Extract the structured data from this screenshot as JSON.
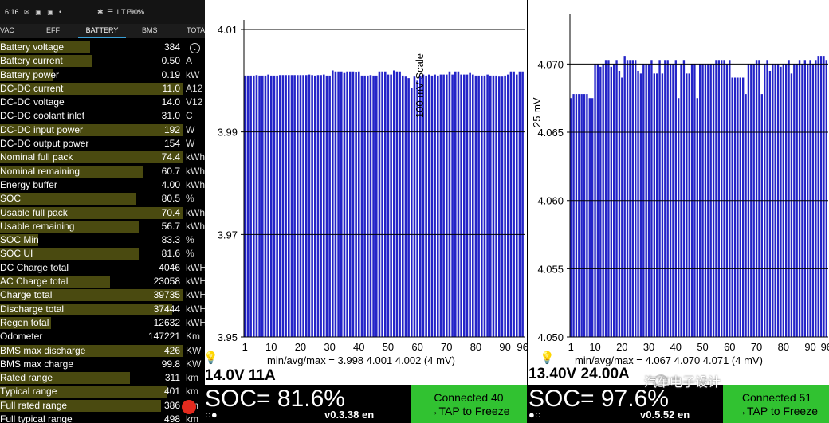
{
  "status_bar": {
    "time": "6:16",
    "icons": "✉ ▣ ▣ •",
    "signal": "✱ ☰ LTE",
    "battery": "90%"
  },
  "tabs": [
    "VAC",
    "EFF",
    "BATTERY",
    "BMS",
    "TOTA"
  ],
  "active_tab": "BATTERY",
  "rows": [
    {
      "label": "Battery voltage",
      "value": "384",
      "unit": "",
      "fill": 0.49
    },
    {
      "label": "Battery current",
      "value": "0.50",
      "unit": "A",
      "fill": 0.5
    },
    {
      "label": "Battery power",
      "value": "0.19",
      "unit": "kW",
      "fill": 0.29
    },
    {
      "label": "DC-DC current",
      "value": "11.0",
      "unit": "A12",
      "fill": 1.0
    },
    {
      "label": "DC-DC voltage",
      "value": "14.0",
      "unit": "V12",
      "fill": 0.0
    },
    {
      "label": "DC-DC coolant inlet",
      "value": "31.0",
      "unit": "C",
      "fill": 0.0
    },
    {
      "label": "DC-DC input power",
      "value": "192",
      "unit": "W",
      "fill": 1.0
    },
    {
      "label": "DC-DC output power",
      "value": "154",
      "unit": "W",
      "fill": 0.0
    },
    {
      "label": "Nominal full pack",
      "value": "74.4",
      "unit": "kWh",
      "fill": 1.0
    },
    {
      "label": "Nominal remaining",
      "value": "60.7",
      "unit": "kWh",
      "fill": 0.78
    },
    {
      "label": "Energy buffer",
      "value": "4.00",
      "unit": "kWh",
      "fill": 0.0
    },
    {
      "label": "SOC",
      "value": "80.5",
      "unit": "%",
      "fill": 0.74
    },
    {
      "label": "Usable full pack",
      "value": "70.4",
      "unit": "kWh",
      "fill": 1.0
    },
    {
      "label": "Usable remaining",
      "value": "56.7",
      "unit": "kWh",
      "fill": 0.76
    },
    {
      "label": "SOC Min",
      "value": "83.3",
      "unit": "%",
      "fill": 0.21
    },
    {
      "label": "SOC UI",
      "value": "81.6",
      "unit": "%",
      "fill": 0.76
    },
    {
      "label": "DC Charge total",
      "value": "4046",
      "unit": "kWH",
      "fill": 0.0
    },
    {
      "label": "AC Charge total",
      "value": "23058",
      "unit": "kWH",
      "fill": 0.6
    },
    {
      "label": "Charge total",
      "value": "39735",
      "unit": "kWH",
      "fill": 1.0
    },
    {
      "label": "Discharge total",
      "value": "37444",
      "unit": "kWH",
      "fill": 0.94
    },
    {
      "label": "Regen total",
      "value": "12632",
      "unit": "kWH",
      "fill": 0.28
    },
    {
      "label": "Odometer",
      "value": "147221",
      "unit": "Km",
      "fill": 0.0
    },
    {
      "label": "BMS max discharge",
      "value": "426",
      "unit": "KW",
      "fill": 1.0
    },
    {
      "label": "BMS max charge",
      "value": "99.8",
      "unit": "KW",
      "fill": 0.0
    },
    {
      "label": "Rated range",
      "value": "311",
      "unit": "km",
      "fill": 0.71
    },
    {
      "label": "Typical range",
      "value": "401",
      "unit": "km",
      "fill": 0.91
    },
    {
      "label": "Full rated range",
      "value": "386",
      "unit": "km",
      "fill": 0.88
    },
    {
      "label": "Full typical range",
      "value": "498",
      "unit": "km",
      "fill": 0.0
    }
  ],
  "panel1": {
    "ylabel": "100 mV Scale",
    "yticks": [
      "4.01",
      "3.99",
      "3.97",
      "3.95"
    ],
    "xticks": [
      "1",
      "10",
      "20",
      "30",
      "40",
      "50",
      "60",
      "70",
      "80",
      "90",
      "96"
    ],
    "minavgmax": "min/avg/max = 3.998 4.001 4.002  (4 mV)",
    "vi": "14.0V 11A",
    "soc": "SOC= 81.6%",
    "version": "v0.3.38 en",
    "dots": "○●",
    "conn_line1": "Connected 40",
    "conn_line2": "→TAP to Freeze",
    "bulb": "💡"
  },
  "panel2": {
    "ylabel": "25 mV",
    "yticks": [
      "4.070",
      "4.065",
      "4.060",
      "4.055",
      "4.050"
    ],
    "xticks": [
      "1",
      "10",
      "20",
      "30",
      "40",
      "50",
      "60",
      "70",
      "80",
      "90",
      "96"
    ],
    "minavgmax": "min/avg/max = 4.067 4.070 4.071  (4 mV)",
    "vi": "13.40V 24.00A",
    "soc": "SOC= 97.6%",
    "version": "v0.5.52 en",
    "dots": "●○",
    "conn_line1": "Connected 51",
    "conn_line2": "→TAP to Freeze",
    "bulb": "💡"
  },
  "watermark": "汽车电子设计",
  "chart_data": [
    {
      "type": "bar",
      "ylabel": "100 mV Scale",
      "ylim": [
        3.95,
        4.01
      ],
      "x": "cells 1-96",
      "values": [
        4.001,
        4.001,
        4.001,
        4.001,
        4.0011,
        4.001,
        4.001,
        4.001,
        4.0012,
        4.001,
        4.001,
        4.001,
        4.0011,
        4.0011,
        4.0011,
        4.0011,
        4.0011,
        4.0011,
        4.0011,
        4.0011,
        4.0011,
        4.0011,
        4.0012,
        4.0011,
        4.001,
        4.0011,
        4.0011,
        4.0012,
        4.001,
        4.001,
        4.002,
        4.0018,
        4.0018,
        4.0018,
        4.0015,
        4.0018,
        4.0018,
        4.0018,
        4.0016,
        4.0018,
        4.001,
        4.001,
        4.001,
        4.0011,
        4.001,
        4.001,
        4.0018,
        4.0018,
        4.0018,
        4.0012,
        4.0012,
        4.002,
        4.0018,
        4.0018,
        4.001,
        4.0008,
        4.0005,
        3.9985,
        4.0008,
        4.0,
        4.001,
        4.0012,
        4.001,
        4.0012,
        4.001,
        4.0012,
        4.001,
        4.0012,
        4.0012,
        4.0012,
        4.0018,
        4.0012,
        4.0018,
        4.0018,
        4.0012,
        4.0012,
        4.0012,
        4.0015,
        4.0012,
        4.001,
        4.001,
        4.001,
        4.001,
        4.0012,
        4.001,
        4.001,
        4.001,
        4.0008,
        4.0008,
        4.001,
        4.0012,
        4.0018,
        4.0018,
        4.0012,
        4.0018,
        4.0018
      ]
    },
    {
      "type": "bar",
      "ylabel": "25 mV",
      "ylim": [
        4.05,
        4.073
      ],
      "x": "cells 1-96",
      "values": [
        4.0675,
        4.0678,
        4.0678,
        4.0678,
        4.0678,
        4.0678,
        4.0678,
        4.0675,
        4.0675,
        4.07,
        4.07,
        4.0698,
        4.07,
        4.0703,
        4.0703,
        4.0698,
        4.07,
        4.0703,
        4.0695,
        4.069,
        4.0706,
        4.0703,
        4.0703,
        4.0703,
        4.0703,
        4.0695,
        4.0693,
        4.07,
        4.07,
        4.07,
        4.0703,
        4.0693,
        4.0693,
        4.0703,
        4.0693,
        4.0703,
        4.0703,
        4.07,
        4.07,
        4.0703,
        4.0675,
        4.07,
        4.0703,
        4.0693,
        4.0693,
        4.07,
        4.07,
        4.0675,
        4.07,
        4.07,
        4.07,
        4.07,
        4.07,
        4.07,
        4.0703,
        4.0703,
        4.0703,
        4.0703,
        4.07,
        4.0703,
        4.069,
        4.069,
        4.069,
        4.069,
        4.069,
        4.0678,
        4.07,
        4.07,
        4.07,
        4.0703,
        4.0703,
        4.0678,
        4.07,
        4.0703,
        4.0695,
        4.07,
        4.07,
        4.07,
        4.0698,
        4.07,
        4.07,
        4.0703,
        4.0693,
        4.07,
        4.07,
        4.0703,
        4.07,
        4.0703,
        4.07,
        4.0703,
        4.07,
        4.0703,
        4.0706,
        4.0706,
        4.0706,
        4.0703
      ]
    }
  ]
}
